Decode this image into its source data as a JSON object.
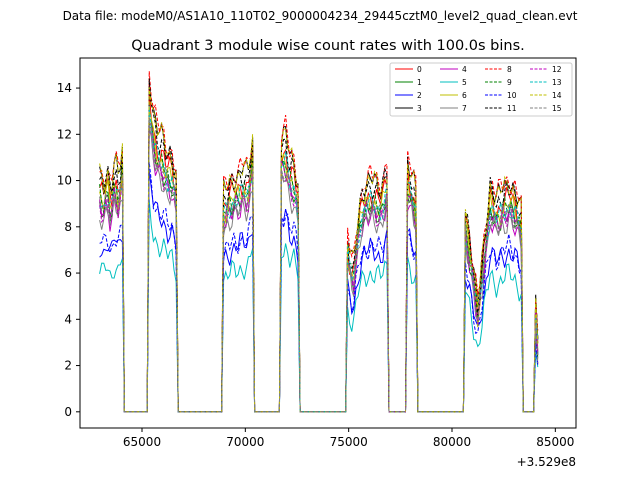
{
  "figure": {
    "suptitle": "Data file: modeM0/AS1A10_110T02_9000004234_29445cztM0_level2_quad_clean.evt"
  },
  "chart_data": {
    "type": "line",
    "title": "Quadrant 3 module wise count rates with 100.0s bins.",
    "xlabel": "",
    "ylabel": "",
    "x_offset_label": "+3.529e8",
    "xlim": [
      62000,
      86000
    ],
    "ylim": [
      -0.7,
      15.3
    ],
    "x_ticks": [
      65000,
      70000,
      75000,
      80000,
      85000
    ],
    "x_tick_labels": [
      "65000",
      "70000",
      "75000",
      "80000",
      "85000"
    ],
    "y_ticks": [
      0,
      2,
      4,
      6,
      8,
      10,
      12,
      14
    ],
    "y_tick_labels": [
      "0",
      "2",
      "4",
      "6",
      "8",
      "10",
      "12",
      "14"
    ],
    "grid": false,
    "legend_position": "top-right",
    "segments": [
      {
        "start": 62950,
        "end": 64050,
        "levels": [
          10.3,
          9.8,
          10.6,
          9.4,
          10.9,
          10.1,
          11.3
        ]
      },
      {
        "start": 65350,
        "end": 66650,
        "levels": [
          14.5,
          12.8,
          12.0,
          11.9,
          11.2,
          11.1,
          10.2
        ]
      },
      {
        "start": 68950,
        "end": 70350,
        "levels": [
          9.5,
          9.8,
          10.1,
          10.2,
          10.5,
          10.3,
          11.8
        ]
      },
      {
        "start": 71750,
        "end": 72550,
        "levels": [
          11.8,
          12.0,
          11.0,
          10.8,
          9.8
        ]
      },
      {
        "start": 74950,
        "end": 76850,
        "levels": [
          7.4,
          6.2,
          8.8,
          9.7,
          10.0,
          9.9,
          9.6,
          10.6
        ]
      },
      {
        "start": 77850,
        "end": 78250,
        "levels": [
          10.8,
          10.2,
          9.5
        ]
      },
      {
        "start": 80650,
        "end": 83350,
        "levels": [
          8.8,
          6.8,
          4.6,
          7.3,
          9.8,
          9.2,
          9.6,
          9.9,
          9.5,
          8.7
        ]
      },
      {
        "start": 84050,
        "end": 84150,
        "levels": [
          4.8,
          3.0
        ]
      }
    ],
    "series": [
      {
        "name": "0",
        "color": "#ff0000",
        "dash": "solid",
        "scale": 0.94
      },
      {
        "name": "1",
        "color": "#008000",
        "dash": "solid",
        "scale": 0.88
      },
      {
        "name": "2",
        "color": "#0000ff",
        "dash": "solid",
        "scale": 0.7
      },
      {
        "name": "3",
        "color": "#000000",
        "dash": "solid",
        "scale": 1.0
      },
      {
        "name": "4",
        "color": "#bf00bf",
        "dash": "solid",
        "scale": 0.86
      },
      {
        "name": "5",
        "color": "#00bfbf",
        "dash": "solid",
        "scale": 0.6
      },
      {
        "name": "6",
        "color": "#bfbf00",
        "dash": "solid",
        "scale": 0.91
      },
      {
        "name": "7",
        "color": "#808080",
        "dash": "solid",
        "scale": 0.84
      },
      {
        "name": "8",
        "color": "#ff0000",
        "dash": "dashed",
        "scale": 1.02
      },
      {
        "name": "9",
        "color": "#008000",
        "dash": "dashed",
        "scale": 0.9
      },
      {
        "name": "10",
        "color": "#0000ff",
        "dash": "dashed",
        "scale": 0.72
      },
      {
        "name": "11",
        "color": "#000000",
        "dash": "dashed",
        "scale": 0.98
      },
      {
        "name": "12",
        "color": "#bf00bf",
        "dash": "dashed",
        "scale": 0.87
      },
      {
        "name": "13",
        "color": "#00bfbf",
        "dash": "dashed",
        "scale": 0.9
      },
      {
        "name": "14",
        "color": "#bfbf00",
        "dash": "dashed",
        "scale": 1.0
      },
      {
        "name": "15",
        "color": "#808080",
        "dash": "dashed",
        "scale": 0.88
      }
    ]
  }
}
